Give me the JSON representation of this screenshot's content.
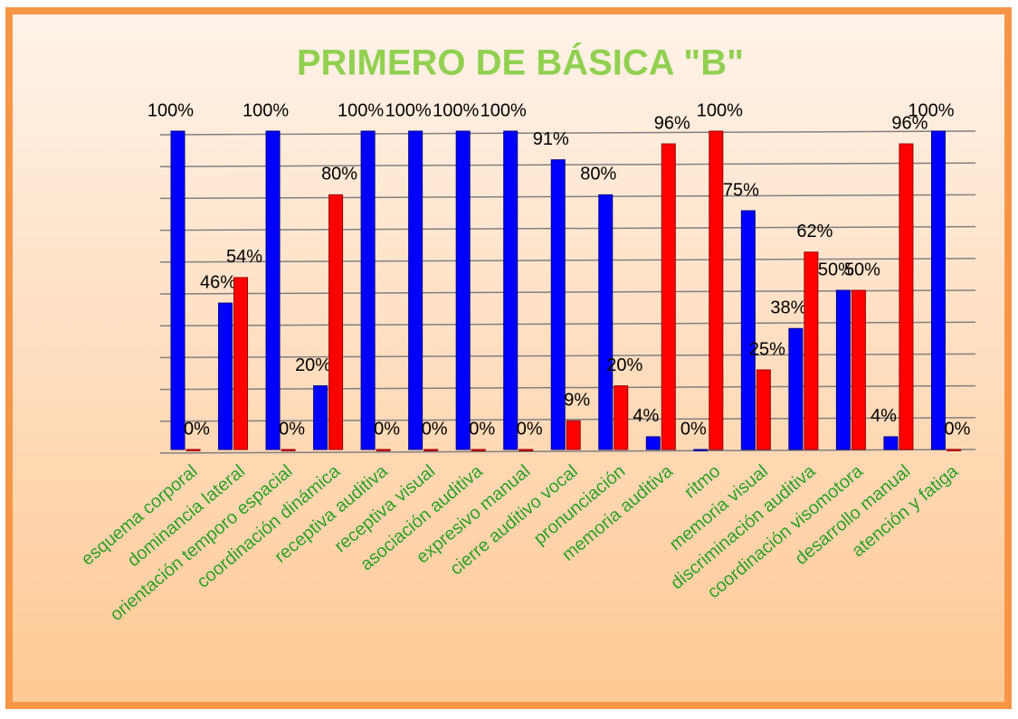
{
  "chart_data": {
    "type": "bar",
    "title": "PRIMERO DE BÁSICA \"B\"",
    "categories": [
      "esquema corporal",
      "dominancia lateral",
      "orientación temporo espacial",
      "coordinación dinámica",
      "receptiva auditiva",
      "receptiva visual",
      "asociación auditiva",
      "expresivo manual",
      "cierre auditivo vocal",
      "pronunciación",
      "memoria auditiva",
      "ritmo",
      "memoria visual",
      "discriminación auditiva",
      "coordinación visomotora",
      "desarrollo manual",
      "atención y fatiga"
    ],
    "series": [
      {
        "color": "#0000ff",
        "values": [
          100,
          46,
          100,
          20,
          100,
          100,
          100,
          100,
          91,
          80,
          4,
          0,
          75,
          38,
          50,
          4,
          100
        ],
        "value_labels": [
          "100%",
          "46%",
          "100%",
          "20%",
          "100%",
          "100%",
          "100%",
          "100%",
          "91%",
          "80%",
          "4%",
          "0%",
          "75%",
          "38%",
          "50%",
          "4%",
          "100%"
        ]
      },
      {
        "color": "#ff0000",
        "values": [
          0,
          54,
          0,
          80,
          0,
          0,
          0,
          0,
          9,
          20,
          96,
          100,
          25,
          62,
          50,
          96,
          0
        ],
        "value_labels": [
          "0%",
          "54%",
          "0%",
          "80%",
          "0%",
          "0%",
          "0%",
          "0%",
          "9%",
          "20%",
          "96%",
          "100%",
          "25%",
          "62%",
          "50%",
          "96%",
          "0%"
        ]
      }
    ],
    "ylim": [
      0,
      100
    ],
    "yticks": [
      0,
      10,
      20,
      30,
      40,
      50,
      60,
      70,
      80,
      90,
      100
    ],
    "grid": true
  }
}
